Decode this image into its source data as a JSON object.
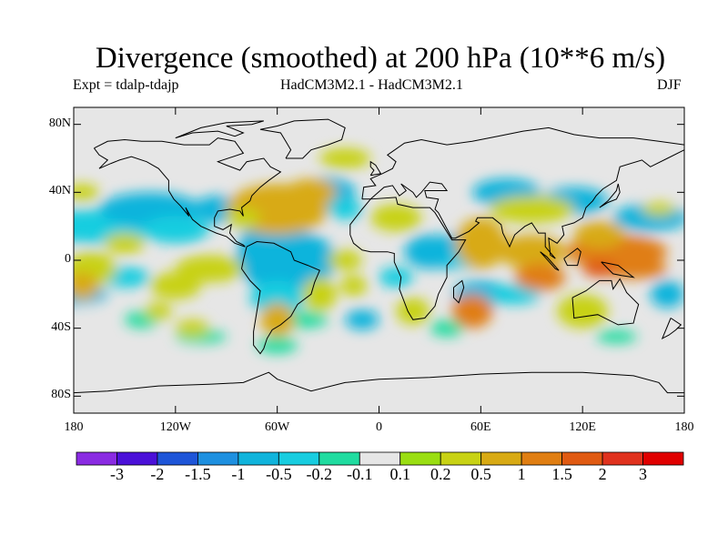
{
  "title": "Divergence (smoothed) at 200 hPa (10**6 m/s)",
  "experiment": "Expt = tdalp-tdajp",
  "models": "HadCM3M2.1 - HadCM3M2.1",
  "season": "DJF",
  "lat_labels": [
    "80N",
    "40N",
    "0",
    "40S",
    "80S"
  ],
  "lat_values": [
    80,
    40,
    0,
    -40,
    -80
  ],
  "lon_labels": [
    "180",
    "120W",
    "60W",
    "0",
    "60E",
    "120E",
    "180"
  ],
  "lon_values": [
    -180,
    -120,
    -60,
    0,
    60,
    120,
    180
  ],
  "colorbar": {
    "labels": [
      "-3",
      "-2",
      "-1.5",
      "-1",
      "-0.5",
      "-0.2",
      "-0.1",
      "0.1",
      "0.2",
      "0.5",
      "1",
      "1.5",
      "2",
      "3"
    ],
    "colors": [
      "#8a2be2",
      "#4b10d8",
      "#1e55d8",
      "#1e90e0",
      "#10b4dc",
      "#18cde0",
      "#20dca0",
      "#e6e6e6",
      "#9ade12",
      "#c8d214",
      "#d8aa14",
      "#e07e12",
      "#e05a12",
      "#e0321e",
      "#e00000"
    ]
  },
  "map_colors": {
    "background": "#e6e6e6",
    "coast": "#000000"
  }
}
